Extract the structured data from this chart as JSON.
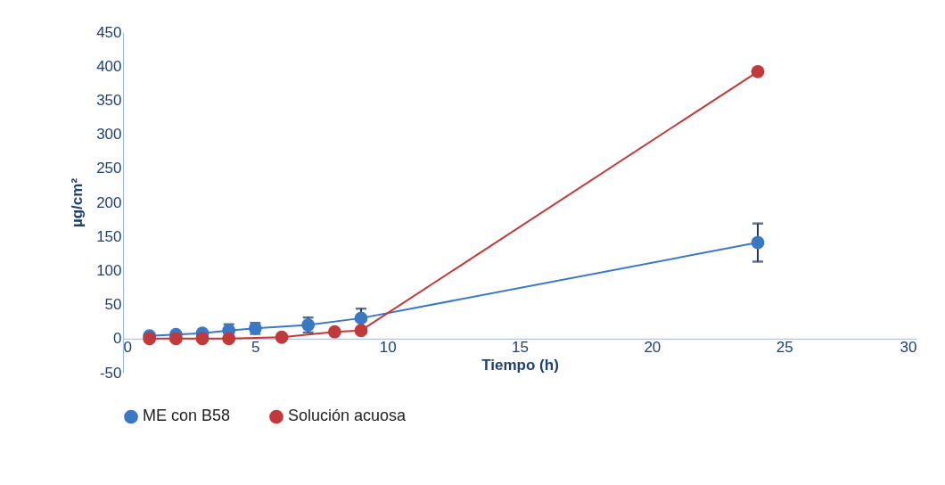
{
  "chart_data": {
    "type": "line",
    "xlabel": "Tiempo (h)",
    "ylabel": "µg/cm²",
    "xlim": [
      0,
      30
    ],
    "xticks": [
      0,
      5,
      10,
      15,
      20,
      25,
      30
    ],
    "ylim": [
      -50,
      450
    ],
    "yticks": [
      -50,
      0,
      50,
      100,
      150,
      200,
      250,
      300,
      350,
      400,
      450
    ],
    "grid": false,
    "legend": "bottom",
    "marker": "circle",
    "line_style": "solid",
    "series": [
      {
        "name": "ME con B58",
        "color": "#3a78c3",
        "x": [
          1,
          2,
          3,
          4,
          5,
          7,
          9,
          24
        ],
        "values": [
          4,
          6,
          8,
          12,
          15,
          20,
          30,
          141
        ],
        "errors": [
          2,
          2,
          3,
          9,
          8,
          11,
          14,
          28
        ]
      },
      {
        "name": "Solución acuosa",
        "color": "#c0393b",
        "x": [
          1,
          2,
          3,
          4,
          6,
          8,
          9,
          24
        ],
        "values": [
          0,
          0,
          0,
          0,
          2,
          10,
          12,
          392
        ]
      }
    ]
  }
}
